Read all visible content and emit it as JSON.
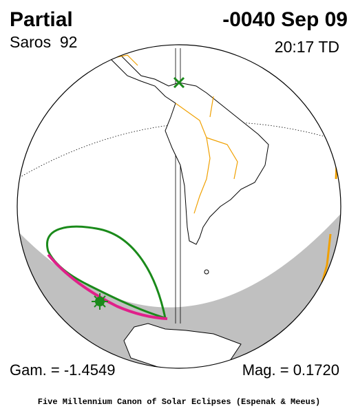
{
  "header": {
    "title": "Partial",
    "saros": "Saros  92",
    "date": "-0040 Sep 09",
    "time": "20:17 TD"
  },
  "footer": {
    "gamma": "Gam. = -1.4549",
    "magnitude": "Mag. = 0.1720",
    "credit": "Five Millennium Canon of Solar Eclipses (Espenak & Meeus)"
  }
}
